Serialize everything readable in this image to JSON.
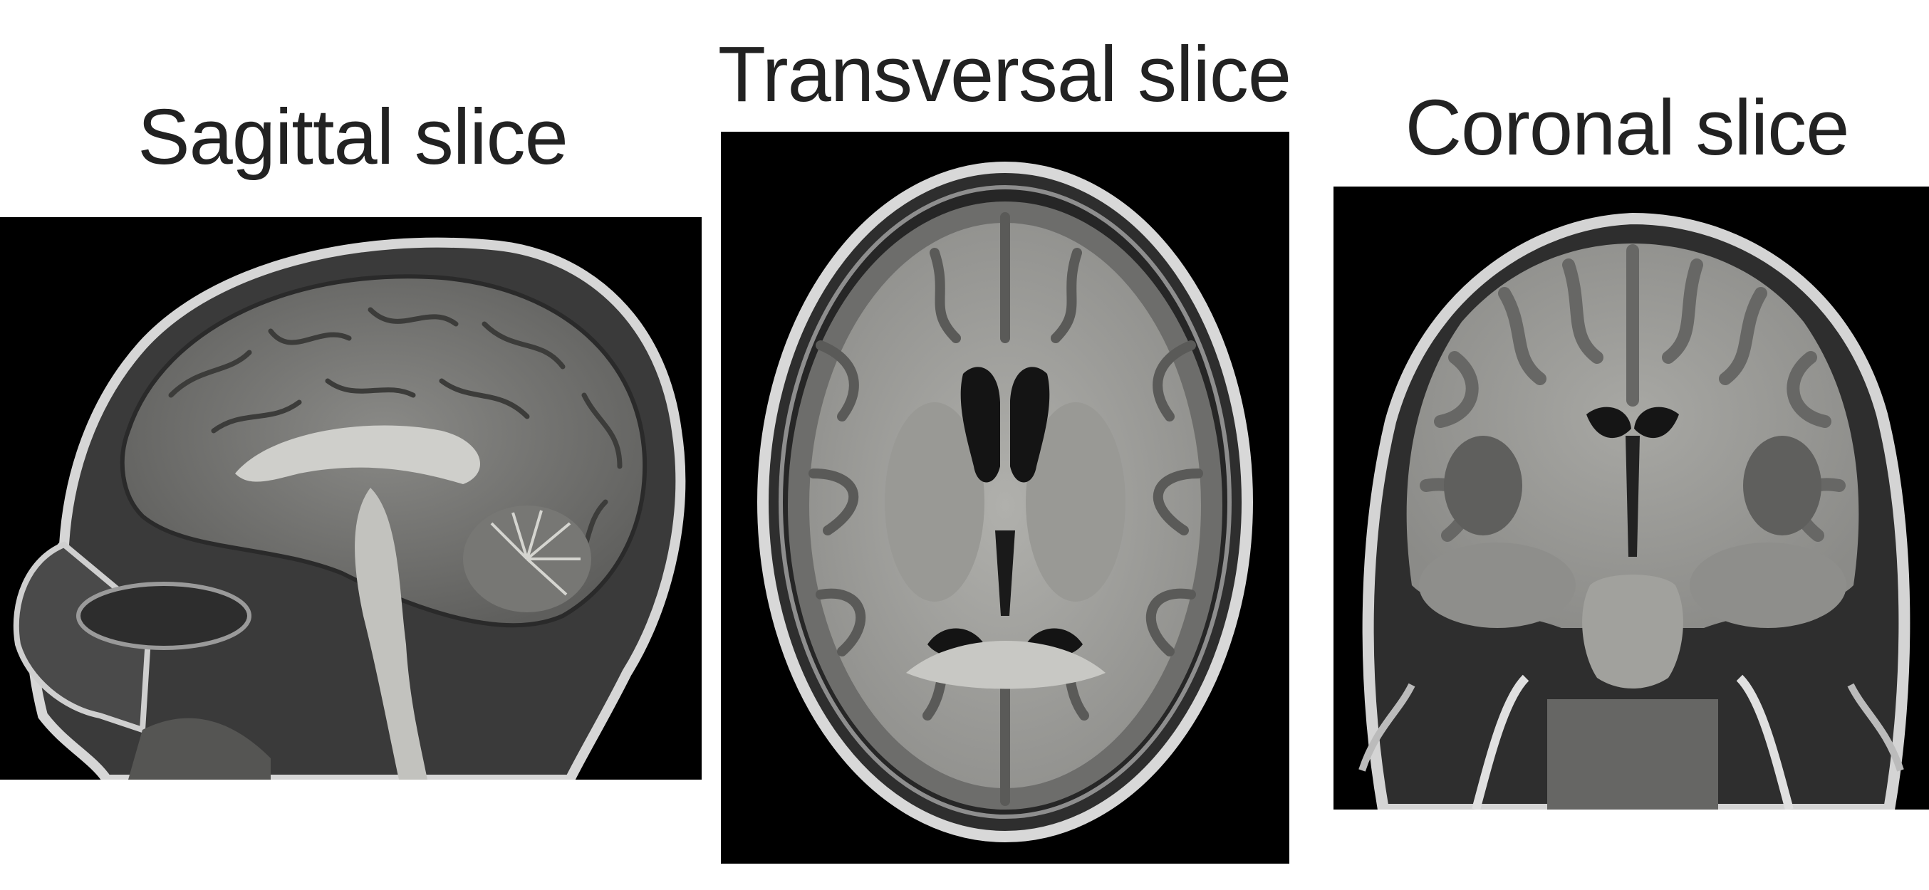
{
  "figure": {
    "panels": [
      {
        "id": "sagittal",
        "title": "Sagittal slice",
        "image_icon": "mri-sagittal-brain-icon"
      },
      {
        "id": "transversal",
        "title": "Transversal slice",
        "image_icon": "mri-axial-brain-icon"
      },
      {
        "id": "coronal",
        "title": "Coronal slice",
        "image_icon": "mri-coronal-brain-icon"
      }
    ]
  },
  "colors": {
    "background": "#ffffff",
    "scan_background": "#000000",
    "white_matter": "#a9a9a5",
    "gray_matter": "#6f6f6d",
    "csf": "#1a1a1a",
    "skull_bright": "#d8d8d8",
    "title_text": "#222222"
  }
}
